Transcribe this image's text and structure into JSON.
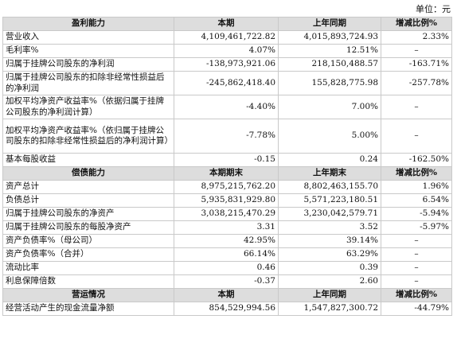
{
  "unit_label": "单位：元",
  "sections": [
    {
      "header": [
        "盈利能力",
        "本期",
        "上年同期",
        "增减比例%"
      ],
      "rows": [
        {
          "label": "营业收入",
          "cur": "4,109,461,722.82",
          "prev": "4,015,893,724.93",
          "chg": "2.33%"
        },
        {
          "label": "毛利率%",
          "cur": "4.07%",
          "prev": "12.51%",
          "chg": "–"
        },
        {
          "label": "归属于挂牌公司股东的净利润",
          "cur": "-138,973,921.06",
          "prev": "218,150,488.57",
          "chg": "-163.71%"
        },
        {
          "label": "归属于挂牌公司股东的扣除非经常性损益后的净利润",
          "cur": "-245,862,418.40",
          "prev": "155,828,775.98",
          "chg": "-257.78%"
        },
        {
          "label": "加权平均净资产收益率%（依据归属于挂牌公司股东的净利润计算）",
          "cur": "-4.40%",
          "prev": "7.00%",
          "chg": "–"
        },
        {
          "label": "加权平均净资产收益率%（依归属于挂牌公司股东的扣除非经常性损益后的净利润计算）",
          "cur": "-7.78%",
          "prev": "5.00%",
          "chg": "–"
        },
        {
          "label": "基本每股收益",
          "cur": "-0.15",
          "prev": "0.24",
          "chg": "-162.50%"
        }
      ]
    },
    {
      "header": [
        "偿债能力",
        "本期期末",
        "上年期末",
        "增减比例%"
      ],
      "rows": [
        {
          "label": "资产总计",
          "cur": "8,975,215,762.20",
          "prev": "8,802,463,155.70",
          "chg": "1.96%"
        },
        {
          "label": "负债总计",
          "cur": "5,935,831,929.80",
          "prev": "5,571,223,180.51",
          "chg": "6.54%"
        },
        {
          "label": "归属于挂牌公司股东的净资产",
          "cur": "3,038,215,470.29",
          "prev": "3,230,042,579.71",
          "chg": "-5.94%"
        },
        {
          "label": "归属于挂牌公司股东的每股净资产",
          "cur": "3.31",
          "prev": "3.52",
          "chg": "-5.97%"
        },
        {
          "label": "资产负债率%（母公司）",
          "cur": "42.95%",
          "prev": "39.14%",
          "chg": "–"
        },
        {
          "label": "资产负债率%（合并）",
          "cur": "66.14%",
          "prev": "63.29%",
          "chg": "–"
        },
        {
          "label": "流动比率",
          "cur": "0.46",
          "prev": "0.39",
          "chg": "–"
        },
        {
          "label": "利息保障倍数",
          "cur": "-0.37",
          "prev": "2.60",
          "chg": "–"
        }
      ]
    },
    {
      "header": [
        "营运情况",
        "本期",
        "上年同期",
        "增减比例%"
      ],
      "rows": [
        {
          "label": "经营活动产生的现金流量净额",
          "cur": "854,529,994.56",
          "prev": "1,547,827,300.72",
          "chg": "-44.79%"
        }
      ]
    }
  ]
}
